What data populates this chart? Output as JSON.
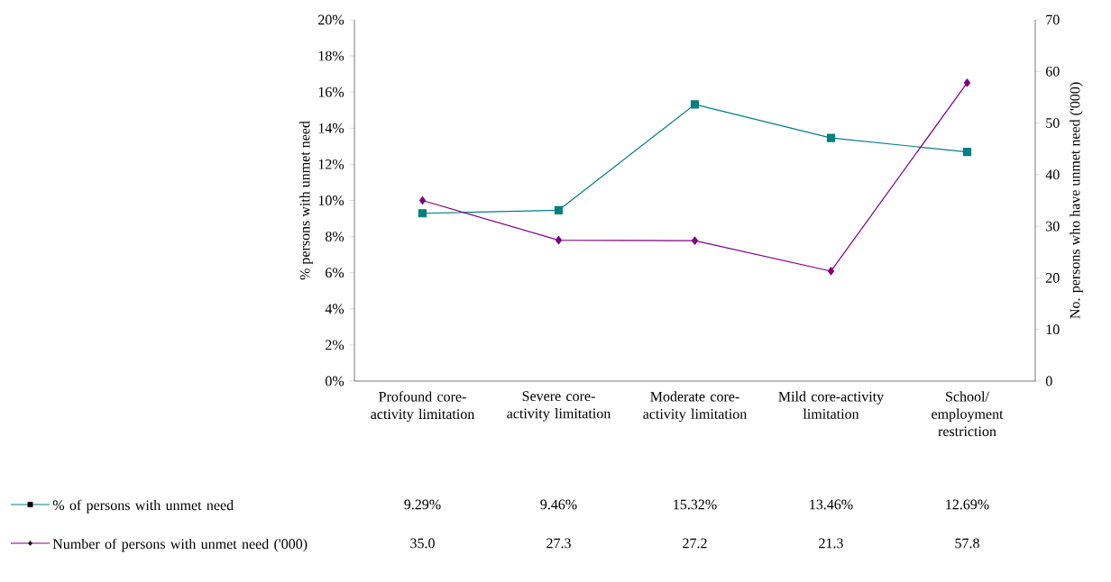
{
  "chart_data": {
    "type": "line",
    "ylabel": "% persons with unmet need",
    "y2label": "No. persons who have unmet need ('000)",
    "categories": [
      "Profound core-activity limitation",
      "Severe core-activity limitation",
      "Moderate core-activity limitation",
      "Mild core-activity limitation",
      "School/ employment restriction"
    ],
    "series": [
      {
        "name": "% of persons with unmet need",
        "color": "#008080",
        "marker": "square",
        "values": [
          9.29,
          9.46,
          15.32,
          13.46,
          12.69
        ],
        "value_labels": [
          "9.29%",
          "9.46%",
          "15.32%",
          "13.46%",
          "12.69%"
        ]
      },
      {
        "name": "Number of persons with unmet need ('000)",
        "color": "#800080",
        "marker": "diamond",
        "axis": "y2",
        "values": [
          35.0,
          27.3,
          27.2,
          21.3,
          57.8
        ],
        "value_labels": [
          "35.0",
          "27.3",
          "27.2",
          "21.3",
          "57.8"
        ]
      }
    ],
    "ylim": [
      0,
      20
    ],
    "yticks": [
      {
        "value": 0,
        "label": "0%"
      },
      {
        "value": 2,
        "label": "2%"
      },
      {
        "value": 4,
        "label": "4%"
      },
      {
        "value": 6,
        "label": "6%"
      },
      {
        "value": 8,
        "label": "8%"
      },
      {
        "value": 10,
        "label": "10%"
      },
      {
        "value": 12,
        "label": "12%"
      },
      {
        "value": 14,
        "label": "14%"
      },
      {
        "value": 16,
        "label": "16%"
      },
      {
        "value": 18,
        "label": "18%"
      },
      {
        "value": 20,
        "label": "20%"
      }
    ],
    "y2lim": [
      0,
      70
    ],
    "y2ticks": [
      0,
      10,
      20,
      30,
      40,
      50,
      60,
      70
    ],
    "legend": "bottom",
    "line_style": "solid"
  }
}
